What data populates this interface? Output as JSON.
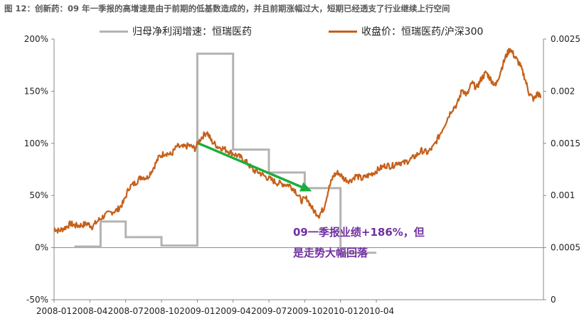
{
  "figure_title": "图 12：创新药：09 年一季报的高增速是由于前期的低基数造成的，并且前期涨幅过大，短期已经透支了行业继续上行空间",
  "chart_data": {
    "type": "line",
    "title": "09年一季报的高增速是由于前期的低基数造成的，并且前期涨幅过大，短期已经透支了行业继续上行空间",
    "x_ticks": [
      "2008-01",
      "2008-04",
      "2008-07",
      "2008-10",
      "2009-01",
      "2009-04",
      "2009-07",
      "2009-10",
      "2010-01",
      "2010-04"
    ],
    "y_left": {
      "ticks": [
        "200%",
        "150%",
        "100%",
        "50%",
        "0%",
        "-50%"
      ],
      "min": -50,
      "max": 200
    },
    "y_right": {
      "ticks": [
        "0.0025",
        "0.002",
        "0.0015",
        "0.001",
        "0.0005",
        "0"
      ],
      "min": 0,
      "max": 0.0025
    },
    "series": [
      {
        "name": "归母净利润增速：恒瑞医药",
        "axis": "left",
        "color": "#b3b3b3",
        "steps": [
          {
            "from": 1.7,
            "to": 3.9,
            "value": 1
          },
          {
            "from": 3.9,
            "to": 6.0,
            "value": 25
          },
          {
            "from": 6.0,
            "to": 9.0,
            "value": 10
          },
          {
            "from": 9.0,
            "to": 12.0,
            "value": 2
          },
          {
            "from": 12.0,
            "to": 15.0,
            "value": 186
          },
          {
            "from": 15.0,
            "to": 18.0,
            "value": 94
          },
          {
            "from": 18.0,
            "to": 21.0,
            "value": 72
          },
          {
            "from": 21.0,
            "to": 24.0,
            "value": 57
          },
          {
            "from": 24.0,
            "to": 27.0,
            "value": -5
          }
        ]
      },
      {
        "name": "收盘价：恒瑞医药/沪深300",
        "axis": "right",
        "color": "#c5601a",
        "points": [
          [
            0,
            0.000685
          ],
          [
            0.4,
            0.00066
          ],
          [
            0.9,
            0.00069
          ],
          [
            1.4,
            0.00073
          ],
          [
            1.8,
            0.00071
          ],
          [
            2.3,
            0.000715
          ],
          [
            2.8,
            0.00073
          ],
          [
            3.2,
            0.0007
          ],
          [
            3.7,
            0.00076
          ],
          [
            4.2,
            0.000805
          ],
          [
            4.8,
            0.00084
          ],
          [
            5.3,
            0.00086
          ],
          [
            5.8,
            0.00093
          ],
          [
            6.3,
            0.00108
          ],
          [
            6.8,
            0.00112
          ],
          [
            7.3,
            0.00118
          ],
          [
            7.8,
            0.00117
          ],
          [
            8.3,
            0.00126
          ],
          [
            8.8,
            0.00137
          ],
          [
            9.3,
            0.00141
          ],
          [
            9.8,
            0.00139
          ],
          [
            10.3,
            0.00147
          ],
          [
            10.8,
            0.00146
          ],
          [
            11.3,
            0.00148
          ],
          [
            11.8,
            0.00145
          ],
          [
            12.3,
            0.00155
          ],
          [
            12.8,
            0.00161
          ],
          [
            13.2,
            0.00152
          ],
          [
            13.7,
            0.00147
          ],
          [
            14.2,
            0.00145
          ],
          [
            14.7,
            0.00142
          ],
          [
            15.2,
            0.00139
          ],
          [
            15.7,
            0.00136
          ],
          [
            16.2,
            0.00131
          ],
          [
            16.7,
            0.00124
          ],
          [
            17.2,
            0.00122
          ],
          [
            17.7,
            0.00118
          ],
          [
            18.2,
            0.00115
          ],
          [
            18.7,
            0.00112
          ],
          [
            19.2,
            0.00111
          ],
          [
            19.7,
            0.0011
          ],
          [
            20.2,
            0.00105
          ],
          [
            20.7,
            0.00095
          ],
          [
            21.2,
            0.00097
          ],
          [
            21.7,
            0.00086
          ],
          [
            22.2,
            0.00081
          ],
          [
            22.6,
            0.00088
          ],
          [
            23.0,
            0.00106
          ],
          [
            23.4,
            0.00119
          ],
          [
            23.8,
            0.00122
          ],
          [
            24.3,
            0.00116
          ],
          [
            24.8,
            0.00114
          ],
          [
            25.3,
            0.00119
          ],
          [
            25.8,
            0.00116
          ],
          [
            26.3,
            0.00119
          ],
          [
            26.8,
            0.00122
          ],
          [
            27.3,
            0.00126
          ],
          [
            27.8,
            0.00129
          ],
          [
            28.3,
            0.00128
          ],
          [
            28.8,
            0.00132
          ],
          [
            29.3,
            0.00131
          ],
          [
            29.8,
            0.00134
          ],
          [
            30.3,
            0.00138
          ],
          [
            30.8,
            0.00143
          ],
          [
            31.3,
            0.00141
          ],
          [
            31.8,
            0.00147
          ],
          [
            32.3,
            0.00158
          ],
          [
            32.8,
            0.0017
          ],
          [
            33.3,
            0.00182
          ],
          [
            33.8,
            0.00188
          ],
          [
            34.2,
            0.00202
          ],
          [
            34.6,
            0.00196
          ],
          [
            35.0,
            0.00208
          ],
          [
            35.4,
            0.00203
          ],
          [
            35.8,
            0.00212
          ],
          [
            36.2,
            0.00218
          ],
          [
            36.6,
            0.00211
          ],
          [
            37.0,
            0.00205
          ],
          [
            37.4,
            0.00219
          ],
          [
            37.8,
            0.00232
          ],
          [
            38.2,
            0.00241
          ],
          [
            38.6,
            0.00233
          ],
          [
            39.0,
            0.00226
          ],
          [
            39.4,
            0.00214
          ],
          [
            39.8,
            0.00198
          ],
          [
            40.2,
            0.00192
          ],
          [
            40.5,
            0.00198
          ],
          [
            40.8,
            0.00194
          ]
        ]
      }
    ]
  },
  "annotation": {
    "text_line1": "09一季报业绩+186%，但",
    "text_line2": "是走势大幅回落"
  }
}
